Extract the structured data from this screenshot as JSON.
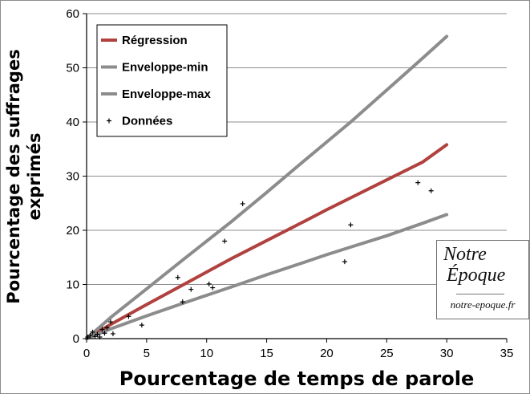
{
  "chart_data": {
    "type": "scatter",
    "title": "",
    "xlabel": "Pourcentage de temps de parole",
    "ylabel_line1": "Pourcentage des suffrages",
    "ylabel_line2": "exprimés",
    "xlim": [
      0,
      35
    ],
    "ylim": [
      0,
      60
    ],
    "x_ticks": [
      0,
      5,
      10,
      15,
      20,
      25,
      30,
      35
    ],
    "y_ticks": [
      0,
      10,
      20,
      30,
      40,
      50,
      60
    ],
    "grid": "horizontal",
    "legend_position": "top-left",
    "series": [
      {
        "name": "Régression",
        "kind": "line",
        "color": "#b0413e",
        "x": [
          0,
          2,
          5,
          8,
          10,
          12,
          15,
          18,
          20,
          22,
          25,
          28,
          30
        ],
        "y": [
          0,
          2.6,
          6.3,
          9.9,
          12.3,
          14.7,
          18.1,
          21.5,
          23.8,
          26.0,
          29.3,
          32.6,
          35.8
        ]
      },
      {
        "name": "Enveloppe-min",
        "kind": "line",
        "color": "#8c8c8c",
        "x": [
          0,
          2,
          5,
          8,
          10,
          12,
          15,
          18,
          20,
          22,
          25,
          28,
          30
        ],
        "y": [
          0,
          1.8,
          4.2,
          6.5,
          8.0,
          9.5,
          11.8,
          14.0,
          15.5,
          16.9,
          19.0,
          21.3,
          22.9
        ]
      },
      {
        "name": "Enveloppe-max",
        "kind": "line",
        "color": "#8c8c8c",
        "x": [
          0,
          2,
          5,
          8,
          10,
          12,
          15,
          18,
          20,
          22,
          25,
          28,
          30
        ],
        "y": [
          0,
          3.9,
          9.2,
          14.5,
          18.0,
          21.5,
          27.0,
          32.6,
          36.3,
          40.0,
          45.9,
          51.8,
          55.8
        ]
      },
      {
        "name": "Données",
        "kind": "scatter",
        "color": "#000000",
        "x": [
          0.1,
          0.3,
          0.5,
          0.7,
          0.9,
          1.1,
          1.3,
          1.5,
          1.7,
          2.0,
          2.2,
          3.5,
          4.6,
          7.6,
          8.0,
          8.7,
          10.2,
          10.5,
          11.5,
          13.0,
          21.5,
          22.0,
          27.6,
          28.7
        ],
        "y": [
          0.3,
          0.6,
          1.2,
          0.4,
          0.8,
          0.3,
          1.7,
          1.0,
          2.0,
          3.1,
          0.9,
          4.1,
          2.5,
          11.3,
          6.8,
          9.1,
          10.1,
          9.4,
          18.0,
          24.9,
          14.2,
          21.0,
          28.8,
          27.3
        ]
      }
    ]
  },
  "watermark": {
    "line1": "Notre",
    "line2": "Époque",
    "url": "notre-epoque.fr"
  }
}
